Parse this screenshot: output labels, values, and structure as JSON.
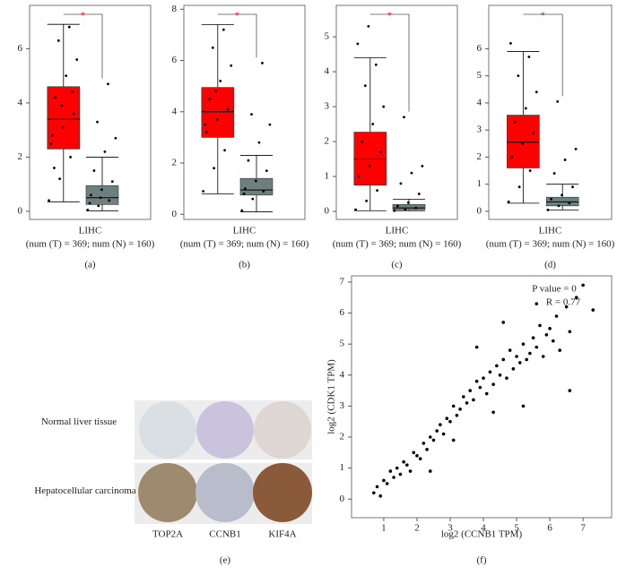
{
  "chart_data": [
    {
      "type": "box",
      "label": "(a)",
      "xlabel": "LIHC",
      "subtitle": "(num (T) = 369; num (N) = 160)",
      "significance": "*",
      "ylim": [
        -0.3,
        7.6
      ],
      "yticks": [
        0,
        2,
        4,
        6
      ],
      "groups": [
        {
          "color": "#ff0000",
          "whisker_low": 0.35,
          "q1": 2.3,
          "median": 3.4,
          "q3": 4.6,
          "whisker_high": 6.9,
          "points": [
            0.4,
            1.2,
            2.0,
            2.8,
            3.1,
            3.6,
            4.2,
            5.0,
            5.6,
            6.3,
            6.8,
            2.5,
            3.9,
            4.4,
            1.6
          ]
        },
        {
          "color": "#6e7f80",
          "whisker_low": 0.02,
          "q1": 0.25,
          "median": 0.5,
          "q3": 0.95,
          "whisker_high": 2.0,
          "points": [
            0.05,
            0.2,
            0.4,
            0.6,
            0.8,
            1.1,
            1.5,
            2.2,
            2.7,
            3.3,
            4.7,
            0.3,
            0.5
          ]
        }
      ]
    },
    {
      "type": "box",
      "label": "(b)",
      "xlabel": "LIHC",
      "subtitle": "(num (T) = 369; num (N) = 160)",
      "significance": "*",
      "ylim": [
        -0.2,
        8.15
      ],
      "yticks": [
        0,
        2,
        4,
        6,
        8
      ],
      "groups": [
        {
          "color": "#ff0000",
          "whisker_low": 0.8,
          "q1": 3.0,
          "median": 4.0,
          "q3": 4.95,
          "whisker_high": 7.4,
          "points": [
            0.9,
            1.8,
            2.5,
            3.2,
            3.7,
            4.1,
            4.5,
            5.2,
            5.8,
            6.5,
            7.2,
            3.5,
            4.8
          ]
        },
        {
          "color": "#6e7f80",
          "whisker_low": 0.1,
          "q1": 0.75,
          "median": 0.95,
          "q3": 1.4,
          "whisker_high": 2.3,
          "points": [
            0.15,
            0.6,
            0.9,
            1.0,
            1.3,
            1.7,
            2.1,
            2.8,
            3.5,
            3.9,
            5.9,
            0.8
          ]
        }
      ]
    },
    {
      "type": "box",
      "label": "(c)",
      "xlabel": "LIHC",
      "subtitle": "(num (T) = 369; num (N) = 160)",
      "significance": "*",
      "ylim": [
        -0.23,
        5.9
      ],
      "yticks": [
        0,
        1,
        2,
        3,
        4,
        5
      ],
      "groups": [
        {
          "color": "#ff0000",
          "whisker_low": 0.02,
          "q1": 0.75,
          "median": 1.5,
          "q3": 2.27,
          "whisker_high": 4.4,
          "points": [
            0.05,
            0.3,
            0.6,
            1.0,
            1.3,
            1.7,
            2.0,
            2.5,
            3.0,
            3.6,
            4.2,
            4.8,
            5.3
          ]
        },
        {
          "color": "#6e7f80",
          "whisker_low": 0.02,
          "q1": 0.05,
          "median": 0.1,
          "q3": 0.2,
          "whisker_high": 0.35,
          "points": [
            0.02,
            0.05,
            0.1,
            0.15,
            0.25,
            0.5,
            0.8,
            1.1,
            1.3,
            2.7
          ]
        }
      ]
    },
    {
      "type": "box",
      "label": "(d)",
      "xlabel": "LIHC",
      "subtitle": "(num (T) = 369; num (N) = 160)",
      "significance": "*",
      "ylim": [
        -0.3,
        7.6
      ],
      "yticks": [
        0,
        1,
        2,
        3,
        4,
        5,
        6
      ],
      "groups": [
        {
          "color": "#ff0000",
          "whisker_low": 0.3,
          "q1": 1.6,
          "median": 2.55,
          "q3": 3.55,
          "whisker_high": 5.9,
          "points": [
            0.35,
            0.9,
            1.5,
            2.0,
            2.5,
            2.9,
            3.3,
            3.8,
            4.4,
            5.0,
            5.7,
            6.2
          ]
        },
        {
          "color": "#6e7f80",
          "whisker_low": 0.05,
          "q1": 0.2,
          "median": 0.35,
          "q3": 0.52,
          "whisker_high": 1.0,
          "points": [
            0.05,
            0.2,
            0.3,
            0.45,
            0.6,
            0.9,
            1.4,
            1.9,
            2.3,
            4.05
          ]
        }
      ]
    },
    {
      "type": "scatter",
      "label": "(f)",
      "xlabel": "log2 (CCNB1 TPM)",
      "ylabel": "log2 (CDK1 TPM)",
      "annotations": [
        "P value = 0",
        "R = 0.77"
      ],
      "color": "#000000",
      "xlim": [
        0.03,
        7.86
      ],
      "ylim": [
        -0.6,
        7.2
      ],
      "xticks": [
        1,
        2,
        3,
        4,
        5,
        6,
        7
      ],
      "yticks": [
        0,
        1,
        2,
        3,
        4,
        5,
        6,
        7
      ],
      "x": [
        0.7,
        0.8,
        0.9,
        1.0,
        1.1,
        1.2,
        1.3,
        1.4,
        1.5,
        1.6,
        1.7,
        1.8,
        1.9,
        2.0,
        2.1,
        2.2,
        2.3,
        2.4,
        2.5,
        2.6,
        2.7,
        2.8,
        2.9,
        3.0,
        3.1,
        3.2,
        3.3,
        3.4,
        3.5,
        3.6,
        3.7,
        3.8,
        3.9,
        4.0,
        4.1,
        4.2,
        4.3,
        4.4,
        4.5,
        4.6,
        4.7,
        4.8,
        4.9,
        5.0,
        5.1,
        5.2,
        5.3,
        5.4,
        5.5,
        5.6,
        5.7,
        5.8,
        5.9,
        6.0,
        6.1,
        6.2,
        6.3,
        6.5,
        6.6,
        6.8,
        7.0,
        7.3,
        3.1,
        4.6,
        5.2,
        2.4,
        3.8,
        6.6,
        4.3,
        5.6
      ],
      "y": [
        0.2,
        0.4,
        0.1,
        0.6,
        0.5,
        0.9,
        0.7,
        1.0,
        0.8,
        1.2,
        1.1,
        0.9,
        1.5,
        1.4,
        1.3,
        1.8,
        1.6,
        2.0,
        1.9,
        2.2,
        2.4,
        2.1,
        2.6,
        2.5,
        3.0,
        2.7,
        2.9,
        3.3,
        3.1,
        3.5,
        3.2,
        3.8,
        3.6,
        3.9,
        3.4,
        4.1,
        3.7,
        4.3,
        4.0,
        4.5,
        3.9,
        4.8,
        4.2,
        4.6,
        4.4,
        5.0,
        4.5,
        4.7,
        5.2,
        4.9,
        5.6,
        4.6,
        5.3,
        5.5,
        5.1,
        5.9,
        4.8,
        6.2,
        5.4,
        6.5,
        6.9,
        6.1,
        1.9,
        5.7,
        3.0,
        0.9,
        4.9,
        3.5,
        2.8,
        6.3
      ]
    }
  ],
  "tissue_panel": {
    "label": "(e)",
    "rows": [
      "Normal liver tissue",
      "Hepatocellular carcinoma"
    ],
    "columns": [
      "TOP2A",
      "CCNB1",
      "KIF4A"
    ]
  }
}
